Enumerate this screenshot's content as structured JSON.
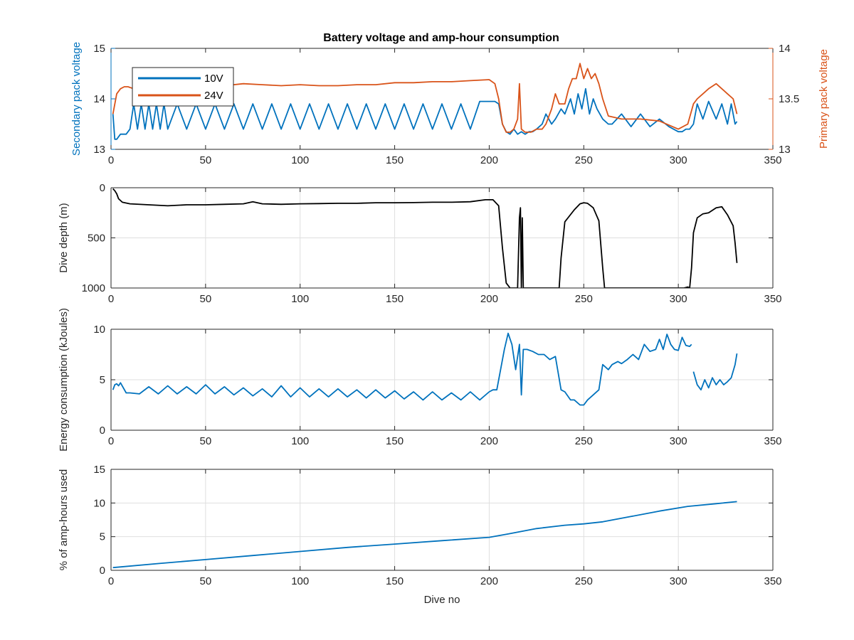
{
  "figure_title": "Battery voltage and amp-hour consumption",
  "colors": {
    "blue": "#0072BD",
    "orange": "#D95319",
    "black": "#000000",
    "grid": "#dfdfdf",
    "axis": "#262626"
  },
  "chart_data": [
    {
      "type": "line",
      "title": "Battery voltage and amp-hour consumption",
      "xlabel": "",
      "ylabel": "Secondary pack voltage",
      "ylabel_right": "Primary pack voltage",
      "xlim": [
        0,
        350
      ],
      "ylim": [
        13,
        15
      ],
      "ylim_right": [
        13,
        14
      ],
      "xticks": [
        "0",
        "50",
        "100",
        "150",
        "200",
        "250",
        "300",
        "350"
      ],
      "yticks": [
        "13",
        "14",
        "15"
      ],
      "yticks_right": [
        "13",
        "13.5",
        "14"
      ],
      "grid": false,
      "legend": {
        "placement": "top-left",
        "entries": [
          "10V",
          "24V"
        ]
      },
      "series": [
        {
          "name": "10V",
          "axis": "left",
          "x": [
            1,
            2,
            3,
            5,
            8,
            10,
            12,
            14,
            16,
            18,
            20,
            22,
            24,
            26,
            28,
            30,
            35,
            40,
            45,
            50,
            55,
            60,
            65,
            70,
            75,
            80,
            85,
            90,
            95,
            100,
            105,
            110,
            115,
            120,
            125,
            130,
            135,
            140,
            145,
            150,
            155,
            160,
            165,
            170,
            175,
            180,
            185,
            190,
            195,
            200,
            203,
            205,
            207,
            209,
            211,
            213,
            215,
            217,
            219,
            221,
            223,
            225,
            228,
            230,
            233,
            235,
            238,
            240,
            243,
            245,
            247,
            249,
            251,
            253,
            255,
            257,
            260,
            263,
            265,
            270,
            275,
            280,
            285,
            290,
            295,
            300,
            302,
            304,
            306,
            308,
            310,
            313,
            316,
            320,
            323,
            326,
            328,
            330,
            331
          ],
          "y": [
            13.7,
            13.2,
            13.2,
            13.3,
            13.3,
            13.4,
            13.9,
            13.4,
            13.9,
            13.4,
            13.9,
            13.4,
            13.9,
            13.4,
            13.9,
            13.4,
            13.9,
            13.4,
            13.9,
            13.4,
            13.9,
            13.4,
            13.9,
            13.4,
            13.9,
            13.4,
            13.9,
            13.4,
            13.9,
            13.4,
            13.9,
            13.4,
            13.9,
            13.4,
            13.9,
            13.4,
            13.9,
            13.4,
            13.9,
            13.4,
            13.9,
            13.4,
            13.9,
            13.4,
            13.9,
            13.4,
            13.9,
            13.4,
            13.95,
            13.95,
            13.95,
            13.9,
            13.5,
            13.35,
            13.3,
            13.4,
            13.3,
            13.35,
            13.3,
            13.35,
            13.35,
            13.4,
            13.5,
            13.7,
            13.5,
            13.6,
            13.8,
            13.7,
            14.0,
            13.7,
            14.1,
            13.8,
            14.2,
            13.7,
            14.0,
            13.8,
            13.6,
            13.5,
            13.5,
            13.7,
            13.45,
            13.7,
            13.45,
            13.6,
            13.45,
            13.35,
            13.35,
            13.4,
            13.4,
            13.5,
            13.9,
            13.6,
            13.95,
            13.6,
            13.9,
            13.5,
            13.9,
            13.5,
            13.55
          ]
        },
        {
          "name": "24V",
          "axis": "right",
          "x": [
            1,
            3,
            5,
            7,
            9,
            12,
            15,
            20,
            30,
            40,
            50,
            60,
            70,
            80,
            90,
            100,
            110,
            120,
            130,
            140,
            150,
            160,
            170,
            180,
            190,
            200,
            203,
            205,
            207,
            209,
            211,
            213,
            215,
            216,
            217,
            219,
            222,
            225,
            228,
            230,
            233,
            235,
            237,
            240,
            242,
            244,
            246,
            248,
            250,
            252,
            254,
            256,
            258,
            260,
            263,
            270,
            280,
            290,
            300,
            305,
            308,
            310,
            313,
            316,
            320,
            323,
            326,
            329,
            331
          ],
          "y": [
            13.35,
            13.55,
            13.6,
            13.62,
            13.62,
            13.6,
            13.61,
            13.6,
            13.62,
            13.62,
            13.61,
            13.63,
            13.65,
            13.64,
            13.63,
            13.64,
            13.63,
            13.63,
            13.64,
            13.64,
            13.66,
            13.66,
            13.67,
            13.67,
            13.68,
            13.69,
            13.65,
            13.5,
            13.25,
            13.17,
            13.17,
            13.2,
            13.3,
            13.65,
            13.2,
            13.17,
            13.17,
            13.2,
            13.2,
            13.25,
            13.4,
            13.55,
            13.45,
            13.45,
            13.6,
            13.7,
            13.7,
            13.85,
            13.7,
            13.8,
            13.7,
            13.75,
            13.65,
            13.5,
            13.33,
            13.3,
            13.3,
            13.28,
            13.2,
            13.25,
            13.45,
            13.5,
            13.55,
            13.6,
            13.65,
            13.6,
            13.55,
            13.5,
            13.35
          ]
        }
      ]
    },
    {
      "type": "line",
      "xlabel": "",
      "ylabel": "Dive depth (m)",
      "xlim": [
        0,
        350
      ],
      "ylim": [
        1000,
        0
      ],
      "y_reversed": true,
      "xticks": [
        "0",
        "50",
        "100",
        "150",
        "200",
        "250",
        "300",
        "350"
      ],
      "yticks": [
        "0",
        "500",
        "1000"
      ],
      "grid": true,
      "series": [
        {
          "x": [
            1,
            2,
            3,
            4,
            6,
            10,
            20,
            30,
            40,
            50,
            60,
            70,
            75,
            80,
            90,
            100,
            110,
            120,
            130,
            140,
            150,
            160,
            170,
            180,
            190,
            198,
            202,
            205,
            207,
            209,
            211,
            213,
            215,
            216,
            216.5,
            217,
            217.5,
            218,
            220,
            225,
            230,
            235,
            237,
            238,
            240,
            245,
            248,
            250,
            252,
            255,
            258,
            260,
            261,
            263,
            270,
            280,
            290,
            300,
            303,
            305,
            306,
            307,
            308,
            310,
            313,
            316,
            320,
            323,
            326,
            329,
            330,
            331
          ],
          "y": [
            10,
            30,
            60,
            110,
            145,
            160,
            170,
            180,
            170,
            170,
            165,
            160,
            140,
            160,
            165,
            160,
            158,
            155,
            155,
            150,
            150,
            148,
            145,
            145,
            140,
            120,
            120,
            180,
            600,
            950,
            1000,
            1000,
            1000,
            300,
            200,
            1000,
            300,
            1000,
            1000,
            1000,
            1000,
            1000,
            1000,
            700,
            340,
            220,
            160,
            150,
            155,
            200,
            330,
            800,
            1000,
            1000,
            1000,
            1000,
            1000,
            1000,
            1000,
            990,
            1000,
            800,
            450,
            300,
            260,
            250,
            200,
            190,
            270,
            380,
            550,
            750
          ]
        }
      ]
    },
    {
      "type": "line",
      "xlabel": "",
      "ylabel": "Energy consumption (kJoules)",
      "xlim": [
        0,
        350
      ],
      "ylim": [
        0,
        10
      ],
      "xticks": [
        "0",
        "50",
        "100",
        "150",
        "200",
        "250",
        "300",
        "350"
      ],
      "yticks": [
        "0",
        "5",
        "10"
      ],
      "grid": true,
      "series": [
        {
          "x": [
            1,
            2,
            3,
            4,
            5,
            8,
            10,
            15,
            20,
            25,
            30,
            35,
            40,
            45,
            50,
            55,
            60,
            65,
            70,
            75,
            80,
            85,
            90,
            95,
            100,
            105,
            110,
            115,
            120,
            125,
            130,
            135,
            140,
            145,
            150,
            155,
            160,
            165,
            170,
            175,
            180,
            185,
            190,
            195,
            200,
            202,
            204,
            206,
            208,
            210,
            212,
            214,
            216,
            217,
            218,
            220,
            223,
            226,
            229,
            232,
            235,
            238,
            240,
            243,
            245,
            248,
            250,
            252,
            255,
            258,
            260,
            263,
            265,
            268,
            270,
            273,
            276,
            279,
            282,
            285,
            288,
            290,
            292,
            294,
            296,
            298,
            300,
            302,
            304,
            306,
            307,
            null,
            308,
            310,
            312,
            314,
            316,
            318,
            320,
            322,
            324,
            326,
            328,
            330,
            331
          ],
          "y": [
            4.0,
            4.5,
            4.6,
            4.4,
            4.7,
            3.7,
            3.7,
            3.6,
            4.3,
            3.6,
            4.4,
            3.6,
            4.3,
            3.6,
            4.5,
            3.6,
            4.3,
            3.5,
            4.2,
            3.4,
            4.1,
            3.3,
            4.4,
            3.3,
            4.2,
            3.3,
            4.1,
            3.3,
            4.1,
            3.3,
            4.0,
            3.2,
            4.0,
            3.2,
            3.9,
            3.1,
            3.8,
            3.0,
            3.8,
            3.0,
            3.7,
            3.0,
            3.8,
            3.0,
            3.8,
            4.0,
            4.0,
            6.0,
            8.0,
            9.6,
            8.5,
            6.0,
            8.5,
            3.5,
            8.0,
            8.0,
            7.8,
            7.5,
            7.5,
            7.0,
            7.3,
            4.0,
            3.8,
            3.0,
            3.0,
            2.5,
            2.5,
            3.0,
            3.5,
            4.0,
            6.5,
            6.0,
            6.5,
            6.8,
            6.6,
            7.0,
            7.5,
            7.0,
            8.5,
            7.8,
            8.0,
            9.0,
            8.0,
            9.5,
            8.5,
            8.0,
            7.9,
            9.2,
            8.4,
            8.3,
            8.5,
            null,
            5.8,
            4.5,
            4.0,
            5.0,
            4.2,
            5.2,
            4.5,
            5.0,
            4.5,
            4.8,
            5.2,
            6.5,
            7.6
          ]
        }
      ]
    },
    {
      "type": "line",
      "xlabel": "Dive no",
      "ylabel": "% of amp-hours used",
      "xlim": [
        0,
        350
      ],
      "ylim": [
        0,
        15
      ],
      "xticks": [
        "0",
        "50",
        "100",
        "150",
        "200",
        "250",
        "300",
        "350"
      ],
      "yticks": [
        "0",
        "5",
        "10",
        "15"
      ],
      "grid": true,
      "series": [
        {
          "x": [
            1,
            25,
            50,
            75,
            100,
            125,
            150,
            175,
            200,
            210,
            225,
            240,
            250,
            260,
            275,
            290,
            305,
            320,
            331
          ],
          "y": [
            0.4,
            1.0,
            1.6,
            2.2,
            2.8,
            3.4,
            3.9,
            4.4,
            4.9,
            5.4,
            6.2,
            6.7,
            6.9,
            7.2,
            8.0,
            8.8,
            9.5,
            9.9,
            10.2
          ]
        }
      ]
    }
  ]
}
